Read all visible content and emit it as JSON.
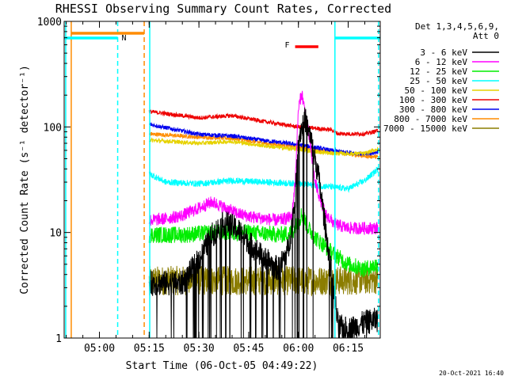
{
  "colors": {
    "3 - 6 keV": "#000000",
    "6 - 12 keV": "#ff00ff",
    "12 - 25 keV": "#00ee00",
    "25 - 50 keV": "#00ffff",
    "50 - 100 keV": "#e6d200",
    "100 - 300 keV": "#ee0000",
    "300 - 800 keV": "#0000ee",
    "800 - 7000 keV": "#ff8c00",
    "7000 - 15000 keV": "#8b7d00"
  },
  "chart_data": {
    "type": "line",
    "title": "RHESSI Observing Summary Count Rates, Corrected",
    "xlabel": "Start Time (06-Oct-05 04:49:22)",
    "ylabel": "Corrected Count Rate (s⁻¹ detector⁻¹)",
    "y_scale": "log",
    "ylim": [
      1,
      1000
    ],
    "xlim": [
      "04:49:22",
      "06:24:40"
    ],
    "x_ticks": [
      "05:00",
      "05:15",
      "05:30",
      "05:45",
      "06:00",
      "06:15"
    ],
    "y_ticks": [
      "1",
      "10",
      "100",
      "1000"
    ],
    "legend_header": [
      "Det 1,3,4,5,6,9,",
      "Att 0"
    ],
    "legend_position": "right",
    "timestamp": "20-Oct-2021 16:40",
    "flags": [
      {
        "label": "N",
        "color": "#00ffff",
        "intervals": [
          [
            "04:49:22",
            "05:05:30"
          ],
          [
            "06:11:00",
            "06:24:40"
          ]
        ]
      },
      {
        "label": "S",
        "color": "#ff8c00",
        "intervals": [
          [
            "04:51:30",
            "05:13:30"
          ]
        ]
      },
      {
        "label": "F",
        "color": "#ff0000",
        "intervals": [
          [
            "05:59:00",
            "06:06:00"
          ]
        ]
      }
    ],
    "vlines": [
      {
        "time": "04:51:30",
        "color": "#ff8c00",
        "style": "solid"
      },
      {
        "time": "04:49:50",
        "color": "#00ffff",
        "style": "solid"
      },
      {
        "time": "05:05:30",
        "color": "#00ffff",
        "style": "dashed"
      },
      {
        "time": "05:13:30",
        "color": "#ff8c00",
        "style": "dashed"
      },
      {
        "time": "05:15:10",
        "color": "#00ffff",
        "style": "solid"
      },
      {
        "time": "06:11:00",
        "color": "#00ffff",
        "style": "solid"
      },
      {
        "time": "06:24:10",
        "color": "#00ffff",
        "style": "dashed"
      }
    ],
    "series": [
      {
        "name": "3 - 6 keV",
        "noise": 0.12,
        "dropouts": true,
        "x": [
          "05:15",
          "05:20",
          "05:25",
          "05:30",
          "05:34",
          "05:38",
          "05:42",
          "05:46",
          "05:50",
          "05:54",
          "05:57",
          "05:59",
          "06:00",
          "06:02",
          "06:04",
          "06:06",
          "06:08",
          "06:10",
          "06:12",
          "06:15",
          "06:20",
          "06:24"
        ],
        "y": [
          3.3,
          3.3,
          3.3,
          5.5,
          9.5,
          12.5,
          10.5,
          7.5,
          5.5,
          4.5,
          7,
          20,
          80,
          120,
          70,
          35,
          12,
          4,
          1.3,
          1.2,
          1.4,
          1.5
        ]
      },
      {
        "name": "6 - 12 keV",
        "noise": 0.06,
        "x": [
          "05:15",
          "05:20",
          "05:25",
          "05:30",
          "05:34",
          "05:38",
          "05:42",
          "05:46",
          "05:50",
          "05:54",
          "05:58",
          "05:59",
          "06:00",
          "06:01",
          "06:03",
          "06:05",
          "06:08",
          "06:11",
          "06:15",
          "06:20",
          "06:24"
        ],
        "y": [
          13,
          13.5,
          14.5,
          17,
          19.5,
          17,
          15,
          14,
          13.5,
          13,
          14,
          30,
          150,
          210,
          90,
          30,
          15,
          12,
          11,
          11,
          11
        ]
      },
      {
        "name": "12 - 25 keV",
        "noise": 0.08,
        "x": [
          "05:15",
          "05:25",
          "05:35",
          "05:45",
          "05:55",
          "05:58",
          "06:00",
          "06:01",
          "06:03",
          "06:05",
          "06:10",
          "06:15",
          "06:20",
          "06:24"
        ],
        "y": [
          9.5,
          9.5,
          10,
          10,
          9.5,
          10,
          12.5,
          15,
          11,
          9,
          6.5,
          5,
          4.5,
          5
        ]
      },
      {
        "name": "25 - 50 keV",
        "noise": 0.03,
        "x": [
          "05:15",
          "05:20",
          "05:30",
          "05:40",
          "05:50",
          "06:00",
          "06:10",
          "06:15",
          "06:20",
          "06:24"
        ],
        "y": [
          36,
          30,
          29,
          31,
          30,
          29,
          27,
          26,
          31,
          40
        ]
      },
      {
        "name": "50 - 100 keV",
        "noise": 0.02,
        "x": [
          "05:15",
          "05:30",
          "05:40",
          "05:50",
          "06:00",
          "06:10",
          "06:20",
          "06:24"
        ],
        "y": [
          75,
          70,
          73,
          66,
          61,
          56,
          56,
          62
        ]
      },
      {
        "name": "100 - 300 keV",
        "noise": 0.02,
        "x": [
          "05:15",
          "05:30",
          "05:40",
          "05:50",
          "06:00",
          "06:10",
          "06:12",
          "06:20",
          "06:24"
        ],
        "y": [
          140,
          122,
          128,
          112,
          100,
          94,
          86,
          86,
          92
        ]
      },
      {
        "name": "300 - 800 keV",
        "noise": 0.02,
        "x": [
          "05:15",
          "05:30",
          "05:40",
          "05:50",
          "06:00",
          "06:10",
          "06:20",
          "06:24"
        ],
        "y": [
          106,
          85,
          82,
          74,
          68,
          60,
          55,
          58
        ]
      },
      {
        "name": "800 - 7000 keV",
        "noise": 0.02,
        "x": [
          "05:15",
          "05:30",
          "05:40",
          "05:50",
          "06:00",
          "06:10",
          "06:20",
          "06:24"
        ],
        "y": [
          86,
          80,
          78,
          70,
          64,
          58,
          53,
          52
        ]
      },
      {
        "name": "7000 - 15000 keV",
        "noise": 0.14,
        "x": [
          "05:15",
          "05:30",
          "05:45",
          "06:00",
          "06:15",
          "06:24"
        ],
        "y": [
          3.5,
          3.5,
          3.5,
          3.5,
          3.5,
          3.6
        ]
      }
    ]
  }
}
